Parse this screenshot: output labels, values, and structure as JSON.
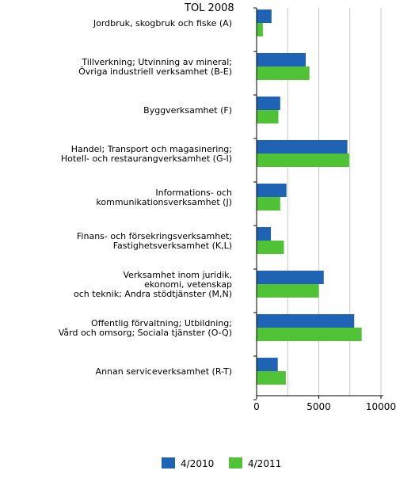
{
  "chart_data": {
    "type": "bar",
    "orientation": "horizontal",
    "header": "TOL 2008",
    "categories": [
      [
        "Jordbruk, skogbruk och fiske (A)"
      ],
      [
        "Tillverkning; Utvinning av mineral;",
        "Övriga industriell verksamhet (B-E)"
      ],
      [
        "Byggverksamhet (F)"
      ],
      [
        "Handel; Transport och magasinering;",
        "Hotell- och restaurangverksamhet (G-I)"
      ],
      [
        "Informations- och",
        "kommunikationsverksamhet (J)"
      ],
      [
        "Finans- och försekringsverksamhet;",
        "Fastighetsverksamhet (K,L)"
      ],
      [
        "Verksamhet inom juridik,",
        "ekonomi, vetenskap",
        "och teknik; Andra stödtjänster (M,N)"
      ],
      [
        "Offentlig förvaltning; Utbildning;",
        "Vård och omsorg; Sociala tjänster (O-Q)"
      ],
      [
        "Annan serviceverksamhet (R-T)"
      ]
    ],
    "series": [
      {
        "name": "4/2010",
        "color": "#1f63b5",
        "values": [
          1200,
          3950,
          1900,
          7300,
          2400,
          1150,
          5400,
          7850,
          1700
        ]
      },
      {
        "name": "4/2011",
        "color": "#4fc236",
        "values": [
          500,
          4250,
          1750,
          7450,
          1900,
          2200,
          5000,
          8450,
          2350
        ]
      }
    ],
    "xlim": [
      0,
      10000
    ],
    "xticks": [
      0,
      5000,
      10000
    ],
    "xtick_labels": [
      "0",
      "5000",
      "10000"
    ],
    "grid": "vertical",
    "legend": "bottom"
  }
}
